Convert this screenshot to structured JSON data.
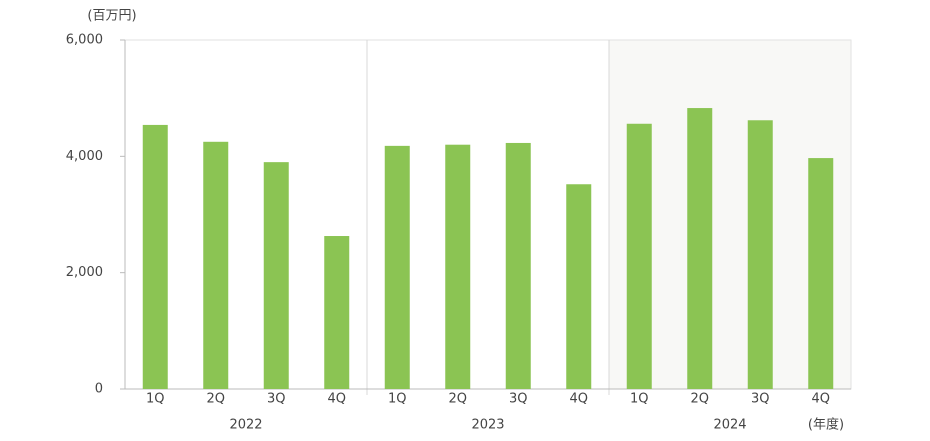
{
  "chart_data": {
    "type": "grouped-bar",
    "unit_label": "(百万円)",
    "x_unit_label": "(年度)",
    "color": "#8bc453",
    "groups": [
      {
        "name": "2022",
        "categories": [
          "1Q",
          "2Q",
          "3Q",
          "4Q"
        ],
        "values": [
          4540,
          4250,
          3900,
          2630
        ],
        "shaded": false
      },
      {
        "name": "2023",
        "categories": [
          "1Q",
          "2Q",
          "3Q",
          "4Q"
        ],
        "values": [
          4180,
          4200,
          4230,
          3520
        ],
        "shaded": false
      },
      {
        "name": "2024",
        "categories": [
          "1Q",
          "2Q",
          "3Q",
          "4Q"
        ],
        "values": [
          4560,
          4830,
          4620,
          3970
        ],
        "shaded": true
      }
    ],
    "ylim": [
      0,
      6000
    ],
    "yticks": [
      0,
      {
        "value": 2000,
        "label": "2,000"
      },
      {
        "value": 4000,
        "label": "4,000"
      },
      {
        "value": 6000,
        "label": "6,000"
      }
    ]
  }
}
